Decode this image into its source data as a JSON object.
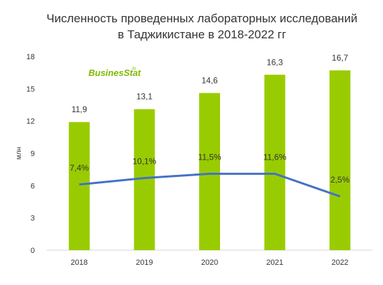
{
  "chart_data": {
    "type": "bar",
    "title_lines": [
      "Численность проведенных лабораторных исследований",
      "в Таджикистане в 2018-2022 гг"
    ],
    "ylabel": "млн",
    "xlabel": "",
    "categories": [
      "2018",
      "2019",
      "2020",
      "2021",
      "2022"
    ],
    "values": [
      11.9,
      13.1,
      14.6,
      16.3,
      16.7
    ],
    "value_labels": [
      "11,9",
      "13,1",
      "14,6",
      "16,3",
      "16,7"
    ],
    "yticks": [
      "0",
      "3",
      "6",
      "9",
      "12",
      "15",
      "18"
    ],
    "ylim": [
      0,
      18
    ],
    "bar_color": "#99cc00",
    "line_series": {
      "type": "line",
      "color": "#4472c4",
      "labels": [
        "7,4%",
        "10,1%",
        "11,5%",
        "11,6%",
        "2,5%"
      ],
      "y_estimated": [
        6.1,
        6.7,
        7.1,
        7.1,
        5.0
      ]
    },
    "grid": false,
    "legend": "none"
  },
  "logo": {
    "text": "BusinesStat",
    "mark": "®",
    "color": "#7fb800"
  }
}
